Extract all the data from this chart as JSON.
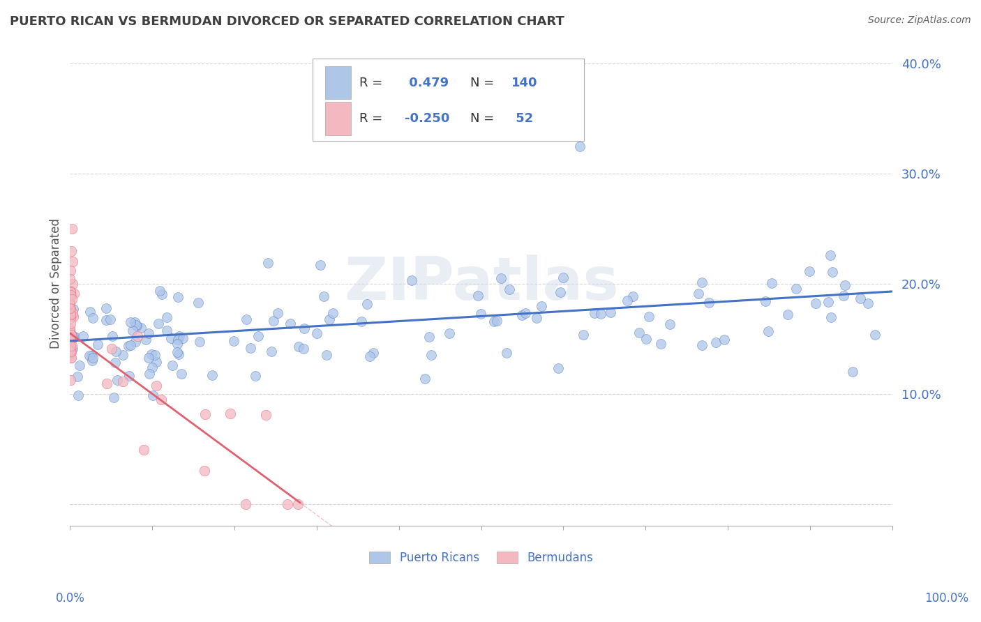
{
  "title": "PUERTO RICAN VS BERMUDAN DIVORCED OR SEPARATED CORRELATION CHART",
  "source_text": "Source: ZipAtlas.com",
  "ylabel": "Divorced or Separated",
  "xlim": [
    0.0,
    1.0
  ],
  "ylim": [
    -0.02,
    0.42
  ],
  "ytick_values": [
    0.0,
    0.1,
    0.2,
    0.3,
    0.4
  ],
  "ytick_labels": [
    "",
    "10.0%",
    "20.0%",
    "30.0%",
    "40.0%"
  ],
  "r_pr": 0.479,
  "n_pr": 140,
  "r_bm": -0.25,
  "n_bm": 52,
  "color_pr": "#aec6e8",
  "color_bm": "#f4b8c1",
  "line_color_pr": "#4472c4",
  "line_color_bm": "#e06070",
  "background_color": "#ffffff",
  "watermark_text": "ZIPatlas",
  "grid_color": "#cccccc",
  "title_color": "#404040",
  "axis_label_color": "#4472c4",
  "legend_text_color": "#4472c4"
}
